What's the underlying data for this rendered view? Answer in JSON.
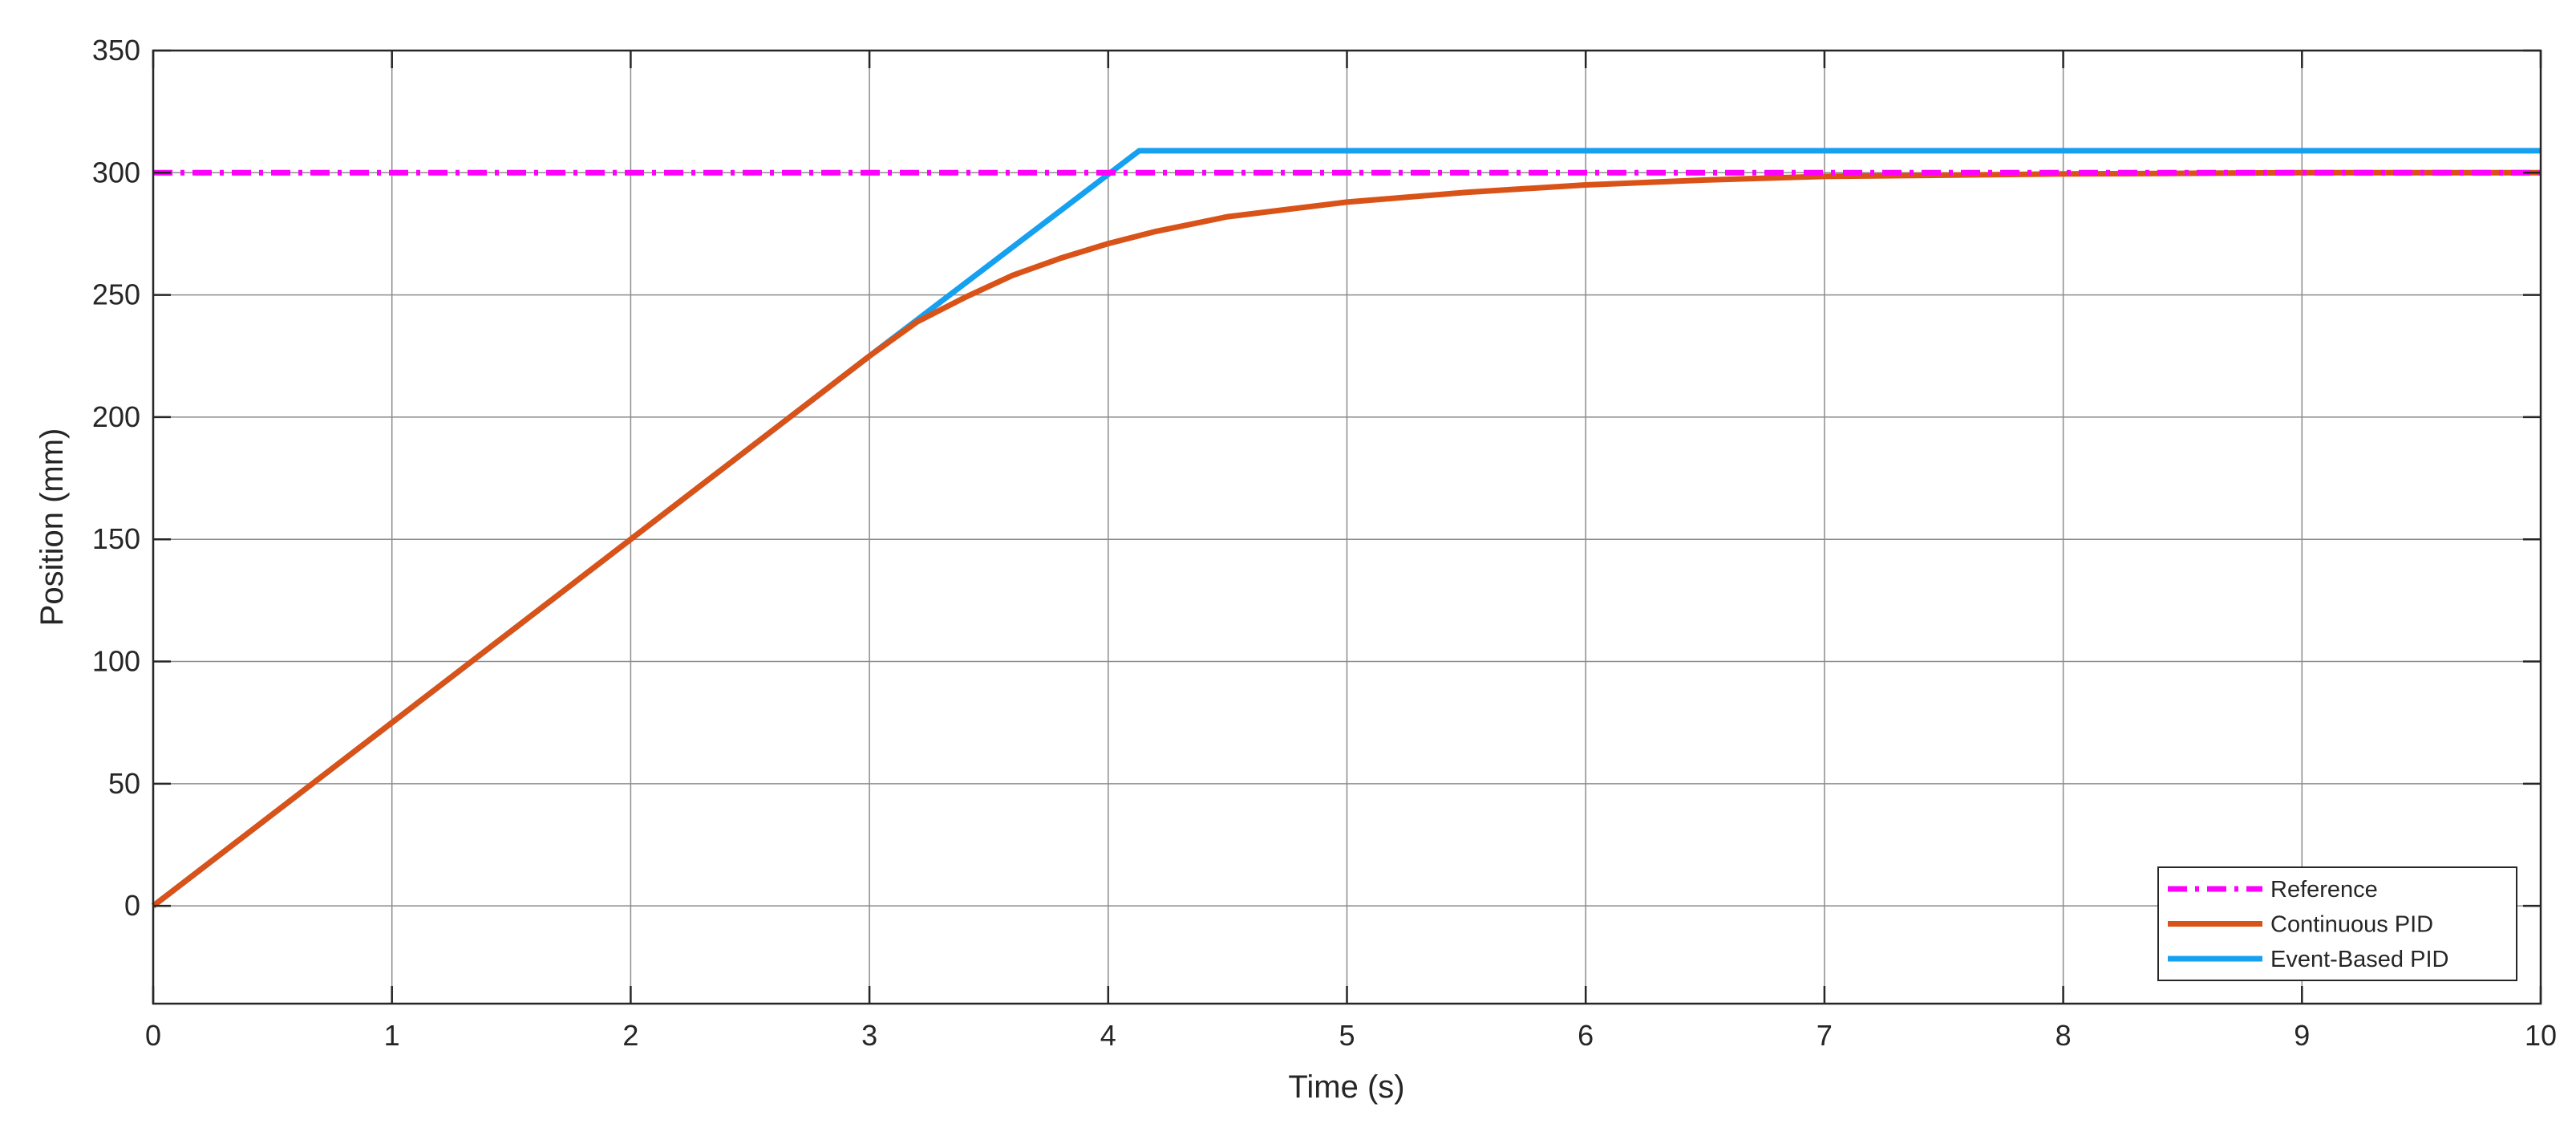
{
  "chart_data": {
    "type": "line",
    "title": "",
    "xlabel": "Time (s)",
    "ylabel": "Position (mm)",
    "xlim": [
      0,
      10
    ],
    "ylim": [
      -40,
      350
    ],
    "xticks": [
      0,
      1,
      2,
      3,
      4,
      5,
      6,
      7,
      8,
      9,
      10
    ],
    "yticks": [
      0,
      50,
      100,
      150,
      200,
      250,
      300,
      350
    ],
    "grid": true,
    "legend_position": "bottom-right",
    "series": [
      {
        "name": "Reference",
        "color": "#ff00ff",
        "style": "dashdot",
        "x": [
          0,
          10
        ],
        "y": [
          300,
          300
        ]
      },
      {
        "name": "Continuous PID",
        "color": "#d95319",
        "style": "solid",
        "x": [
          0,
          1,
          2,
          3,
          3.2,
          3.4,
          3.6,
          3.8,
          4.0,
          4.2,
          4.5,
          5.0,
          5.5,
          6.0,
          6.5,
          7.0,
          7.5,
          8.0,
          9.0,
          10.0
        ],
        "y": [
          0,
          75,
          150,
          225,
          239,
          249,
          258,
          265,
          271,
          276,
          282,
          288,
          292,
          295,
          297,
          298.5,
          299,
          299.5,
          300,
          300
        ]
      },
      {
        "name": "Event-Based PID",
        "color": "#16a0f0",
        "style": "solid",
        "x": [
          0,
          3.0,
          4.13,
          10
        ],
        "y": [
          0,
          225,
          309,
          309
        ]
      }
    ]
  }
}
